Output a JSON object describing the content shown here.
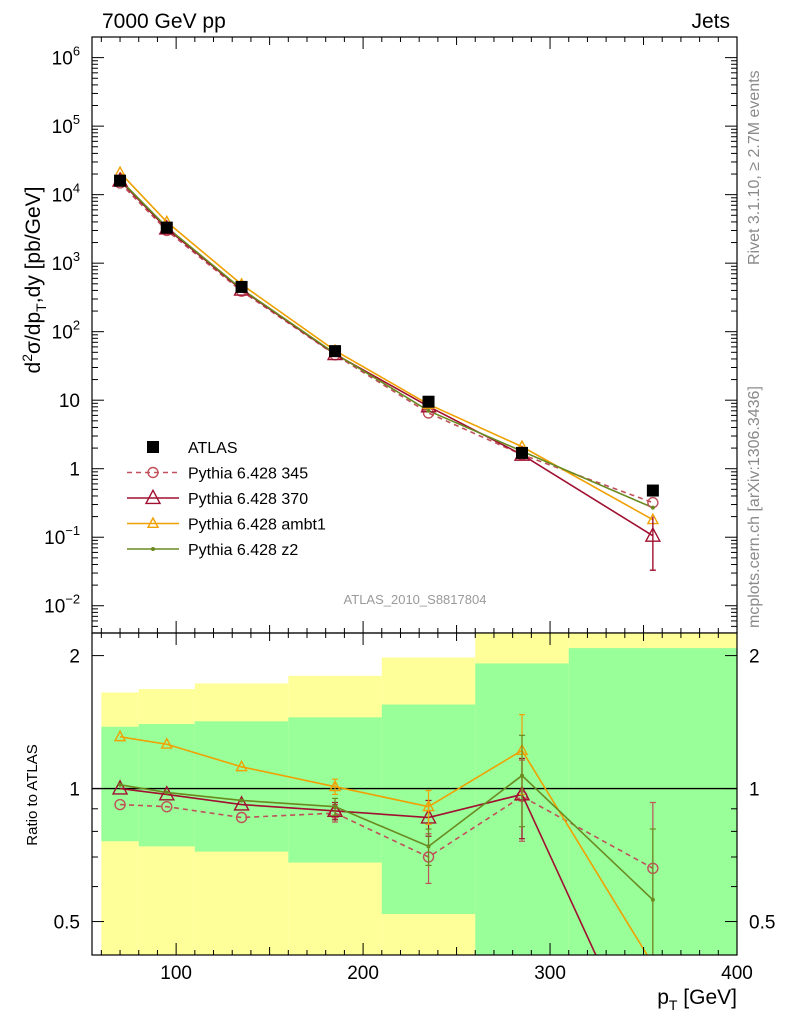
{
  "header": {
    "left": "7000 GeV pp",
    "right": "Jets"
  },
  "side": {
    "rivet": "Rivet 3.1.10, ≥ 2.7M events",
    "mcplots": "mcplots.cern.ch [arXiv:1306.3436]"
  },
  "reference": "ATLAS_2010_S8817804",
  "colors": {
    "atlas": "#000000",
    "p345": "#c0505a",
    "p370": "#a01030",
    "ambt1": "#f0a000",
    "z2": "#6a8a20",
    "band_inner": "#99ff99",
    "band_outer": "#ffff99"
  },
  "chart_data": [
    {
      "type": "line",
      "ylabel": "d²σ/dp_T,dy [pb/GeV]",
      "yscale": "log",
      "ylim": [
        0.004,
        2000000
      ],
      "xlim": [
        55,
        400
      ],
      "ytick_labels": [
        "10^6",
        "10^5",
        "10^4",
        "10^3",
        "10^2",
        "10",
        "1",
        "10^-1",
        "10^-2"
      ],
      "legend_position": "bottom-left",
      "x": [
        70,
        95,
        135,
        185,
        235,
        285,
        355
      ],
      "series": [
        {
          "name": "ATLAS",
          "style": "square-marker",
          "values": [
            16000,
            3300,
            450,
            52,
            9.5,
            1.7,
            0.48
          ]
        },
        {
          "name": "Pythia 6.428 345",
          "style": "dashed-circle",
          "values": [
            14800,
            3000,
            390,
            46,
            6.5,
            1.6,
            0.32
          ]
        },
        {
          "name": "Pythia 6.428 370",
          "style": "solid-triangle",
          "values": [
            16000,
            3200,
            410,
            47,
            8.1,
            1.6,
            0.105
          ]
        },
        {
          "name": "Pythia 6.428 ambt1",
          "style": "solid-small-triangle",
          "values": [
            21000,
            4000,
            490,
            53,
            8.7,
            2.1,
            0.18
          ]
        },
        {
          "name": "Pythia 6.428 z2",
          "style": "solid-dot",
          "values": [
            16500,
            3350,
            420,
            48,
            7.0,
            1.8,
            0.27
          ]
        }
      ]
    },
    {
      "type": "line",
      "xlabel": "p_T [GeV]",
      "ylabel": "Ratio to ATLAS",
      "yscale": "log",
      "ylim": [
        0.42,
        2.25
      ],
      "xlim": [
        55,
        400
      ],
      "xtick_labels": [
        "100",
        "200",
        "300",
        "400"
      ],
      "ytick_labels": [
        "2",
        "1",
        "0.5"
      ],
      "reference_line": 1,
      "bands": [
        {
          "xlo": 60,
          "xhi": 80,
          "inner": [
            0.76,
            1.38
          ],
          "outer": [
            0.39,
            1.65
          ]
        },
        {
          "xlo": 80,
          "xhi": 110,
          "inner": [
            0.74,
            1.4
          ],
          "outer": [
            0.39,
            1.68
          ]
        },
        {
          "xlo": 110,
          "xhi": 160,
          "inner": [
            0.72,
            1.42
          ],
          "outer": [
            0.39,
            1.73
          ]
        },
        {
          "xlo": 160,
          "xhi": 210,
          "inner": [
            0.68,
            1.45
          ],
          "outer": [
            0.39,
            1.8
          ]
        },
        {
          "xlo": 210,
          "xhi": 260,
          "inner": [
            0.52,
            1.55
          ],
          "outer": [
            0.39,
            1.98
          ]
        },
        {
          "xlo": 260,
          "xhi": 310,
          "inner": [
            0.39,
            1.92
          ],
          "outer": [
            0.39,
            2.25
          ]
        },
        {
          "xlo": 310,
          "xhi": 400,
          "inner": [
            0.39,
            2.08
          ],
          "outer": [
            0.39,
            2.25
          ]
        }
      ],
      "x": [
        70,
        95,
        135,
        185,
        235,
        285,
        355
      ],
      "series": [
        {
          "name": "Pythia 6.428 345",
          "values": [
            0.92,
            0.91,
            0.86,
            0.88,
            0.7,
            0.96,
            0.66
          ],
          "errors": [
            0,
            0,
            0,
            0.04,
            0.09,
            0.2,
            0.27
          ]
        },
        {
          "name": "Pythia 6.428 370",
          "values": [
            1.0,
            0.97,
            0.92,
            0.89,
            0.86,
            0.97,
            0.22
          ],
          "errors": [
            0,
            0,
            0,
            0.04,
            0.08,
            0.2,
            0
          ]
        },
        {
          "name": "Pythia 6.428 ambt1",
          "values": [
            1.31,
            1.26,
            1.12,
            1.01,
            0.91,
            1.22,
            0.4
          ],
          "errors": [
            0,
            0,
            0,
            0.04,
            0.08,
            0.25,
            0
          ]
        },
        {
          "name": "Pythia 6.428 z2",
          "values": [
            1.02,
            0.98,
            0.94,
            0.91,
            0.74,
            1.07,
            0.56
          ],
          "errors": [
            0,
            0,
            0,
            0.04,
            0.07,
            0.25,
            0.25
          ]
        }
      ]
    }
  ]
}
